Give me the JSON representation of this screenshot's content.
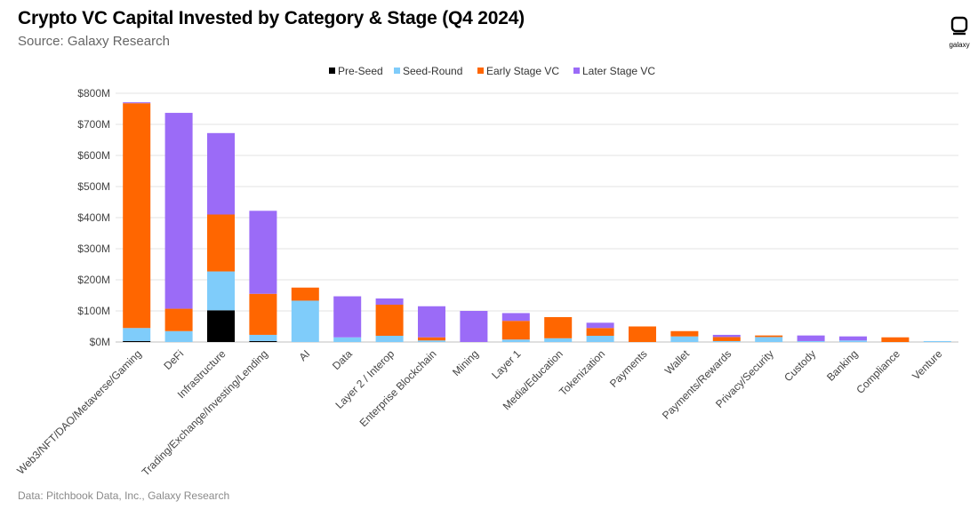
{
  "header": {
    "title": "Crypto VC Capital Invested by Category & Stage (Q4 2024)",
    "subtitle": "Source: Galaxy Research"
  },
  "footer": {
    "text": "Data: Pitchbook Data, Inc., Galaxy Research"
  },
  "logo": {
    "text": "galaxy",
    "icon": "galaxy-logo-icon"
  },
  "chart_data": {
    "type": "bar",
    "stacked": true,
    "title": "Crypto VC Capital Invested by Category & Stage (Q4 2024)",
    "subtitle": "Source: Galaxy Research",
    "xlabel": "",
    "ylabel": "",
    "ylim": [
      0,
      800
    ],
    "yticks": [
      "$0M",
      "$100M",
      "$200M",
      "$300M",
      "$400M",
      "$500M",
      "$600M",
      "$700M",
      "$800M"
    ],
    "grid": true,
    "legend_position": "top-center",
    "categories": [
      "Web3/NFT/DAO/Metaverse/Gaming",
      "DeFi",
      "Infrastructure",
      "Trading/Exchange/Investing/Lending",
      "AI",
      "Data",
      "Layer 2 / Interop",
      "Enterprise Blockchain",
      "Mining",
      "Layer 1",
      "Media/Education",
      "Tokenization",
      "Payments",
      "Wallet",
      "Payments/Rewards",
      "Privacy/Security",
      "Custody",
      "Banking",
      "Compliance",
      "Venture"
    ],
    "series": [
      {
        "name": "Pre-Seed",
        "color": "#000000",
        "values": [
          3,
          0,
          102,
          3,
          0,
          0,
          0,
          0,
          0,
          0,
          0,
          0,
          0,
          0,
          0,
          0,
          0,
          0,
          0,
          0
        ]
      },
      {
        "name": "Seed-Round",
        "color": "#7fccfa",
        "values": [
          42,
          35,
          125,
          20,
          133,
          15,
          20,
          5,
          0,
          8,
          12,
          20,
          0,
          18,
          3,
          16,
          3,
          5,
          0,
          3
        ]
      },
      {
        "name": "Early Stage VC",
        "color": "#ff6600",
        "values": [
          723,
          72,
          183,
          132,
          42,
          0,
          100,
          10,
          0,
          60,
          68,
          25,
          50,
          17,
          13,
          5,
          0,
          0,
          15,
          0
        ]
      },
      {
        "name": "Later Stage VC",
        "color": "#9b6bf7",
        "values": [
          3,
          630,
          262,
          267,
          0,
          132,
          20,
          100,
          100,
          25,
          0,
          17,
          0,
          0,
          7,
          0,
          18,
          13,
          0,
          0
        ]
      }
    ]
  }
}
